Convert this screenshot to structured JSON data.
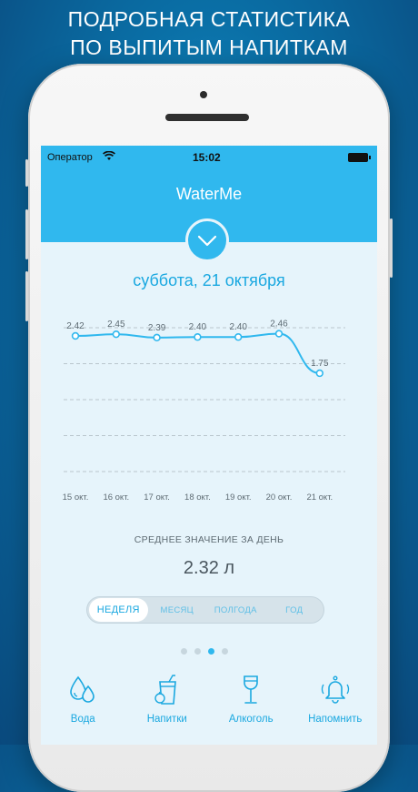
{
  "promo": {
    "line1": "ПОДРОБНАЯ СТАТИСТИКА",
    "line2": "ПО ВЫПИТЫМ НАПИТКАМ"
  },
  "statusbar": {
    "carrier": "Оператор",
    "time": "15:02"
  },
  "app": {
    "title": "WaterMe",
    "date": "суббота, 21 октября"
  },
  "chart_data": {
    "type": "line",
    "x": [
      "15 окт.",
      "16 окт.",
      "17 окт.",
      "18 окт.",
      "19 окт.",
      "20 окт.",
      "21 окт."
    ],
    "values": [
      2.42,
      2.45,
      2.39,
      2.4,
      2.4,
      2.46,
      1.75
    ],
    "labels": [
      "2.42",
      "2.45",
      "2.39",
      "2.40",
      "2.40",
      "2.46",
      "1.75"
    ],
    "ylim": [
      0,
      2.6
    ],
    "grid": "dashed horizontal",
    "color": "#30b8ee"
  },
  "stats": {
    "avg_label": "СРЕДНЕЕ ЗНАЧЕНИЕ ЗА ДЕНЬ",
    "avg_value": "2.32 л"
  },
  "periods": [
    "НЕДЕЛЯ",
    "МЕСЯЦ",
    "ПОЛГОДА",
    "ГОД"
  ],
  "page_indicator": {
    "count": 4,
    "active": 3
  },
  "tabs": [
    {
      "label": "Вода",
      "icon": "water-drops-icon"
    },
    {
      "label": "Напитки",
      "icon": "drink-glass-icon"
    },
    {
      "label": "Алкоголь",
      "icon": "wine-glass-icon"
    },
    {
      "label": "Напомнить",
      "icon": "bell-icon"
    }
  ],
  "colors": {
    "accent": "#30b8ee",
    "screen_bg": "#e6f4fb"
  }
}
